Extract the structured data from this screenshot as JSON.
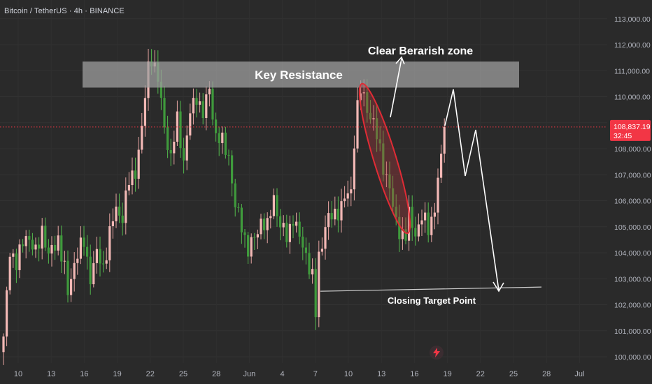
{
  "header": {
    "symbol": "Bitcoin / TetherUS · 4h · BINANCE"
  },
  "colors": {
    "background": "#2a2a2a",
    "up_candle": "#f2b8b5",
    "down_candle": "#3f9a3c",
    "wick_up": "#e8a5a2",
    "wick_down": "#52b84c",
    "price_label": "#f23645",
    "annotation": "#ffffff",
    "resistance_zone": "#9e9e9e",
    "ellipse": "#e02b35"
  },
  "chart_data": {
    "type": "candlestick",
    "x_tick_labels": [
      "10",
      "13",
      "16",
      "19",
      "22",
      "25",
      "28",
      "Jun",
      "4",
      "7",
      "10",
      "13",
      "16",
      "19",
      "22",
      "25",
      "28",
      "Jul"
    ],
    "y_ticks": [
      100000,
      101000,
      102000,
      103000,
      104000,
      105000,
      106000,
      107000,
      108000,
      109000,
      110000,
      111000,
      112000,
      113000
    ],
    "y_tick_labels": [
      "100,000.00",
      "101,000.00",
      "102,000.00",
      "103,000.00",
      "104,000.00",
      "105,000.00",
      "106,000.00",
      "107,000.00",
      "108,000.00",
      "109,000.00",
      "110,000.00",
      "111,000.00",
      "112,000.00",
      "113,000.00"
    ],
    "ylim": [
      99800,
      113300
    ],
    "current_price": 108837.19,
    "current_price_label": "108,837.19",
    "countdown": "32:45",
    "price_path": [
      [
        0,
        100600
      ],
      [
        2,
        104200
      ],
      [
        4,
        103500
      ],
      [
        7,
        104800
      ],
      [
        10,
        103900
      ],
      [
        12,
        105000
      ],
      [
        14,
        103800
      ],
      [
        17,
        104600
      ],
      [
        19,
        103300
      ],
      [
        20,
        102400
      ],
      [
        22,
        103700
      ],
      [
        25,
        104400
      ],
      [
        27,
        103100
      ],
      [
        29,
        103900
      ],
      [
        31,
        103500
      ],
      [
        33,
        104700
      ],
      [
        35,
        105700
      ],
      [
        37,
        105400
      ],
      [
        39,
        106700
      ],
      [
        41,
        107200
      ],
      [
        43,
        108700
      ],
      [
        45,
        111200
      ],
      [
        46,
        111600
      ],
      [
        48,
        110600
      ],
      [
        50,
        108900
      ],
      [
        52,
        107600
      ],
      [
        54,
        109100
      ],
      [
        56,
        107600
      ],
      [
        58,
        109300
      ],
      [
        60,
        110100
      ],
      [
        62,
        109300
      ],
      [
        64,
        110300
      ],
      [
        66,
        108500
      ],
      [
        68,
        108200
      ],
      [
        70,
        107800
      ],
      [
        72,
        105700
      ],
      [
        74,
        105100
      ],
      [
        76,
        104100
      ],
      [
        78,
        104500
      ],
      [
        80,
        105300
      ],
      [
        82,
        104900
      ],
      [
        84,
        106200
      ],
      [
        86,
        105000
      ],
      [
        88,
        104600
      ],
      [
        90,
        105400
      ],
      [
        92,
        104500
      ],
      [
        94,
        104000
      ],
      [
        96,
        103000
      ],
      [
        97,
        101600
      ],
      [
        98,
        103900
      ],
      [
        99,
        104400
      ],
      [
        100,
        105100
      ],
      [
        103,
        105500
      ],
      [
        106,
        106000
      ],
      [
        108,
        106400
      ],
      [
        109,
        108400
      ],
      [
        110,
        109600
      ],
      [
        111,
        110200
      ],
      [
        113,
        109600
      ],
      [
        115,
        109000
      ],
      [
        116,
        108400
      ],
      [
        118,
        107400
      ],
      [
        120,
        106500
      ],
      [
        121,
        105600
      ],
      [
        123,
        104900
      ],
      [
        125,
        104600
      ],
      [
        126,
        105400
      ],
      [
        128,
        104800
      ],
      [
        130,
        105300
      ],
      [
        132,
        105000
      ],
      [
        134,
        105700
      ],
      [
        135,
        106700
      ],
      [
        136,
        107600
      ],
      [
        137,
        108837
      ]
    ],
    "key_resistance": {
      "label": "Key Resistance",
      "from": 110350,
      "to": 111350
    },
    "annotations": {
      "bearish_zone": "Clear Berarish zone",
      "target": "Closing Target Point",
      "target_level": 102600
    }
  }
}
